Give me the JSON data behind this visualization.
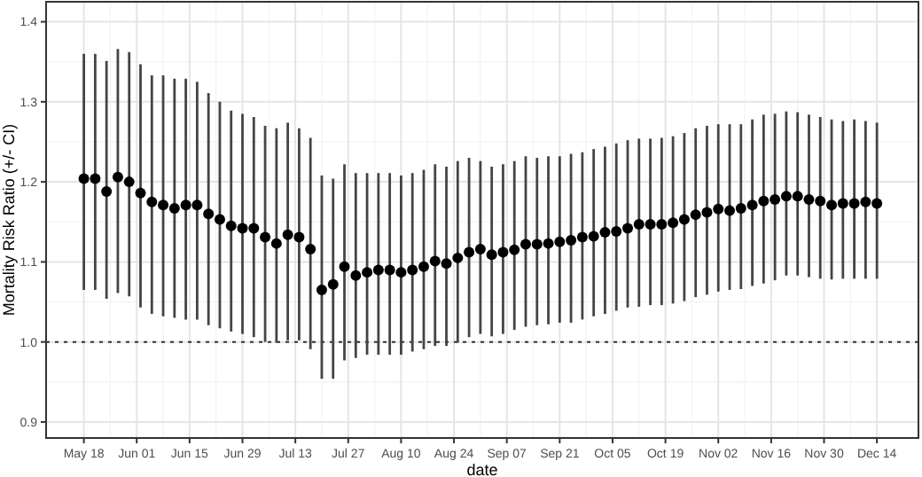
{
  "chart_data": {
    "type": "scatter",
    "xlabel": "date",
    "ylabel": "Mortality Risk Ratio (+/- CI)",
    "marker": "circle",
    "grid": true,
    "color": "#000000",
    "xlim": [
      "--05-08",
      "--12-25"
    ],
    "ylim": [
      0.88,
      1.425
    ],
    "yticks": [
      0.9,
      {
        "value": 1,
        "label": "1.0"
      },
      1.1,
      1.2,
      1.3,
      1.4
    ],
    "xticks": [
      {
        "value": "--05-18",
        "label": "May 18"
      },
      {
        "value": "--06-01",
        "label": "Jun 01"
      },
      {
        "value": "--06-15",
        "label": "Jun 15"
      },
      {
        "value": "--06-29",
        "label": "Jun 29"
      },
      {
        "value": "--07-13",
        "label": "Jul 13"
      },
      {
        "value": "--07-27",
        "label": "Jul 27"
      },
      {
        "value": "--08-10",
        "label": "Aug 10"
      },
      {
        "value": "--08-24",
        "label": "Aug 24"
      },
      {
        "value": "--09-07",
        "label": "Sep 07"
      },
      {
        "value": "--09-21",
        "label": "Sep 21"
      },
      {
        "value": "--10-05",
        "label": "Oct 05"
      },
      {
        "value": "--10-19",
        "label": "Oct 19"
      },
      {
        "value": "--11-02",
        "label": "Nov 02"
      },
      {
        "value": "--11-16",
        "label": "Nov 16"
      },
      {
        "value": "--11-30",
        "label": "Nov 30"
      },
      {
        "value": "--12-14",
        "label": "Dec 14"
      }
    ],
    "ref_lines": [
      {
        "axis": "y",
        "value": 1.0,
        "line_style": "dotted",
        "color": "#333333"
      }
    ],
    "x": [
      "--05-18",
      "--05-21",
      "--05-24",
      "--05-27",
      "--05-30",
      "--06-02",
      "--06-05",
      "--06-08",
      "--06-11",
      "--06-14",
      "--06-17",
      "--06-20",
      "--06-23",
      "--06-26",
      "--06-29",
      "--07-02",
      "--07-05",
      "--07-08",
      "--07-11",
      "--07-14",
      "--07-17",
      "--07-20",
      "--07-23",
      "--07-26",
      "--07-29",
      "--08-01",
      "--08-04",
      "--08-07",
      "--08-10",
      "--08-13",
      "--08-16",
      "--08-19",
      "--08-22",
      "--08-25",
      "--08-28",
      "--08-31",
      "--09-03",
      "--09-06",
      "--09-09",
      "--09-12",
      "--09-15",
      "--09-18",
      "--09-21",
      "--09-24",
      "--09-27",
      "--09-30",
      "--10-03",
      "--10-06",
      "--10-09",
      "--10-12",
      "--10-15",
      "--10-18",
      "--10-21",
      "--10-24",
      "--10-27",
      "--10-30",
      "--11-02",
      "--11-05",
      "--11-08",
      "--11-11",
      "--11-14",
      "--11-17",
      "--11-20",
      "--11-23",
      "--11-26",
      "--11-29",
      "--12-02",
      "--12-05",
      "--12-08",
      "--12-11",
      "--12-14"
    ],
    "values": [
      1.204,
      1.204,
      1.188,
      1.206,
      1.2,
      1.186,
      1.175,
      1.171,
      1.167,
      1.171,
      1.171,
      1.16,
      1.153,
      1.145,
      1.142,
      1.142,
      1.131,
      1.123,
      1.134,
      1.131,
      1.116,
      1.065,
      1.072,
      1.094,
      1.083,
      1.087,
      1.09,
      1.09,
      1.087,
      1.09,
      1.094,
      1.101,
      1.098,
      1.105,
      1.112,
      1.116,
      1.109,
      1.112,
      1.115,
      1.122,
      1.122,
      1.123,
      1.125,
      1.127,
      1.131,
      1.132,
      1.137,
      1.138,
      1.142,
      1.147,
      1.147,
      1.147,
      1.149,
      1.153,
      1.159,
      1.162,
      1.166,
      1.164,
      1.167,
      1.171,
      1.176,
      1.178,
      1.182,
      1.182,
      1.178,
      1.176,
      1.171,
      1.173,
      1.173,
      1.175,
      1.173
    ],
    "errors": [
      [
        1.065,
        1.36
      ],
      [
        1.065,
        1.36
      ],
      [
        1.054,
        1.351
      ],
      [
        1.061,
        1.366
      ],
      [
        1.057,
        1.362
      ],
      [
        1.043,
        1.347
      ],
      [
        1.035,
        1.333
      ],
      [
        1.032,
        1.333
      ],
      [
        1.03,
        1.329
      ],
      [
        1.028,
        1.329
      ],
      [
        1.028,
        1.325
      ],
      [
        1.021,
        1.311
      ],
      [
        1.017,
        1.3
      ],
      [
        1.013,
        1.289
      ],
      [
        1.01,
        1.285
      ],
      [
        1.006,
        1.281
      ],
      [
        1.0,
        1.27
      ],
      [
        0.999,
        1.267
      ],
      [
        1.002,
        1.274
      ],
      [
        1.002,
        1.267
      ],
      [
        0.991,
        1.255
      ],
      [
        0.954,
        1.208
      ],
      [
        0.954,
        1.204
      ],
      [
        0.977,
        1.222
      ],
      [
        0.98,
        1.211
      ],
      [
        0.984,
        1.211
      ],
      [
        0.984,
        1.211
      ],
      [
        0.984,
        1.211
      ],
      [
        0.984,
        1.208
      ],
      [
        0.988,
        1.211
      ],
      [
        0.991,
        1.215
      ],
      [
        0.995,
        1.222
      ],
      [
        0.995,
        1.219
      ],
      [
        0.999,
        1.226
      ],
      [
        1.006,
        1.23
      ],
      [
        1.01,
        1.226
      ],
      [
        1.007,
        1.219
      ],
      [
        1.01,
        1.222
      ],
      [
        1.015,
        1.226
      ],
      [
        1.019,
        1.232
      ],
      [
        1.021,
        1.23
      ],
      [
        1.022,
        1.232
      ],
      [
        1.024,
        1.232
      ],
      [
        1.024,
        1.235
      ],
      [
        1.028,
        1.237
      ],
      [
        1.032,
        1.241
      ],
      [
        1.035,
        1.244
      ],
      [
        1.039,
        1.248
      ],
      [
        1.043,
        1.252
      ],
      [
        1.044,
        1.254
      ],
      [
        1.046,
        1.254
      ],
      [
        1.046,
        1.255
      ],
      [
        1.048,
        1.257
      ],
      [
        1.051,
        1.261
      ],
      [
        1.056,
        1.267
      ],
      [
        1.059,
        1.27
      ],
      [
        1.063,
        1.272
      ],
      [
        1.065,
        1.272
      ],
      [
        1.066,
        1.272
      ],
      [
        1.07,
        1.278
      ],
      [
        1.073,
        1.284
      ],
      [
        1.077,
        1.285
      ],
      [
        1.083,
        1.288
      ],
      [
        1.083,
        1.287
      ],
      [
        1.081,
        1.284
      ],
      [
        1.079,
        1.281
      ],
      [
        1.078,
        1.278
      ],
      [
        1.079,
        1.276
      ],
      [
        1.079,
        1.278
      ],
      [
        1.079,
        1.276
      ],
      [
        1.079,
        1.274
      ]
    ]
  }
}
